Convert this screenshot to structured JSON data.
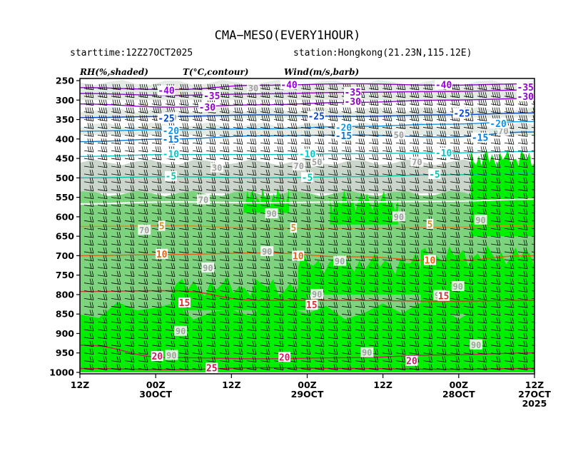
{
  "header": {
    "title": "CMA−MESO(EVERY1HOUR)",
    "starttime": "starttime:12Z27OCT2025",
    "station": "station:Hongkong(21.23N,115.12E)"
  },
  "legend": {
    "rh": "RH(%,shaded)",
    "temp": "T(°C,contour)",
    "wind": "Wind(m/s,barb)"
  },
  "chart_data": {
    "type": "heatmap",
    "title": "CMA−MESO(EVERY1HOUR)",
    "y_axis": {
      "reversed": true,
      "ylim": [
        250,
        1000
      ],
      "ticks": [
        "250",
        "300",
        "350",
        "400",
        "450",
        "500",
        "550",
        "600",
        "650",
        "700",
        "750",
        "800",
        "850",
        "900",
        "950",
        "1000"
      ]
    },
    "x_axis": {
      "direction": "time decreasing to the right",
      "xlim_hours_labels": [
        "12Z 30OCT",
        "12Z 27OCT 2025"
      ],
      "ticks": [
        {
          "line1": "12Z",
          "line2": "",
          "line3": ""
        },
        {
          "line1": "00Z",
          "line2": "30OCT",
          "line3": ""
        },
        {
          "line1": "12Z",
          "line2": "",
          "line3": ""
        },
        {
          "line1": "00Z",
          "line2": "29OCT",
          "line3": ""
        },
        {
          "line1": "12Z",
          "line2": "",
          "line3": ""
        },
        {
          "line1": "00Z",
          "line2": "28OCT",
          "line3": ""
        },
        {
          "line1": "12Z",
          "line2": "27OCT",
          "line3": "2025"
        }
      ]
    },
    "rh_shading": {
      "levels": [
        {
          "min": 30,
          "color": "#e4ebe4"
        },
        {
          "min": 50,
          "color": "#c9d6c9"
        },
        {
          "min": 70,
          "color": "#7ed47e"
        },
        {
          "min": 90,
          "color": "#00ee00"
        }
      ],
      "bands": [
        {
          "p_top": 255,
          "p_bottom": 300,
          "level": 30
        },
        {
          "p_top": 325,
          "p_bottom": 345,
          "level": 30
        },
        {
          "p_top": 365,
          "p_bottom": 390,
          "level": 30
        },
        {
          "p_top": 460,
          "p_bottom": 540,
          "level": 50
        },
        {
          "p_top": 540,
          "p_bottom": 1000,
          "level": 70
        }
      ],
      "saturated_patches": [
        {
          "t0": 0.0,
          "t1": 1.0,
          "p_top": 840,
          "p_bottom": 1000
        },
        {
          "t0": 0.2,
          "t1": 0.5,
          "p_top": 780,
          "p_bottom": 840
        },
        {
          "t0": 0.48,
          "t1": 0.75,
          "p_top": 720,
          "p_bottom": 800
        },
        {
          "t0": 0.75,
          "t1": 1.0,
          "p_top": 700,
          "p_bottom": 850
        },
        {
          "t0": 0.86,
          "t1": 1.0,
          "p_top": 450,
          "p_bottom": 650
        },
        {
          "t0": 0.55,
          "t1": 0.7,
          "p_top": 560,
          "p_bottom": 620
        },
        {
          "t0": 0.36,
          "t1": 0.46,
          "p_top": 550,
          "p_bottom": 590
        }
      ],
      "labels": [
        {
          "t": 0.14,
          "p": 635,
          "text": "70"
        },
        {
          "t": 0.27,
          "p": 557,
          "text": "70"
        },
        {
          "t": 0.28,
          "p": 732,
          "text": "90"
        },
        {
          "t": 0.42,
          "p": 593,
          "text": "90"
        },
        {
          "t": 0.41,
          "p": 690,
          "text": "90"
        },
        {
          "t": 0.3,
          "p": 475,
          "text": "30"
        },
        {
          "t": 0.48,
          "p": 470,
          "text": "70"
        },
        {
          "t": 0.52,
          "p": 460,
          "text": "50"
        },
        {
          "t": 0.57,
          "p": 715,
          "text": "90"
        },
        {
          "t": 0.52,
          "p": 800,
          "text": "90"
        },
        {
          "t": 0.7,
          "p": 601,
          "text": "90"
        },
        {
          "t": 0.79,
          "p": 803,
          "text": "90"
        },
        {
          "t": 0.83,
          "p": 780,
          "text": "90"
        },
        {
          "t": 0.88,
          "p": 609,
          "text": "90"
        },
        {
          "t": 0.22,
          "p": 895,
          "text": "90"
        },
        {
          "t": 0.2,
          "p": 957,
          "text": "90"
        },
        {
          "t": 0.63,
          "p": 950,
          "text": "90"
        },
        {
          "t": 0.87,
          "p": 930,
          "text": "90"
        },
        {
          "t": 0.2,
          "p": 345,
          "text": "30"
        },
        {
          "t": 0.38,
          "p": 270,
          "text": "30"
        },
        {
          "t": 0.7,
          "p": 390,
          "text": "50"
        },
        {
          "t": 0.93,
          "p": 380,
          "text": "70"
        },
        {
          "t": 0.74,
          "p": 460,
          "text": "70"
        }
      ]
    },
    "temperature_contours": [
      {
        "value": -40,
        "color": "#9400d3",
        "points": [
          [
            0.0,
            268
          ],
          [
            0.2,
            273
          ],
          [
            0.4,
            262
          ],
          [
            0.6,
            258
          ],
          [
            0.8,
            262
          ],
          [
            1.0,
            258
          ]
        ]
      },
      {
        "value": -35,
        "color": "#9400d3",
        "points": [
          [
            0.0,
            283
          ],
          [
            0.2,
            288
          ],
          [
            0.4,
            284
          ],
          [
            0.6,
            280
          ],
          [
            0.8,
            278
          ],
          [
            1.0,
            274
          ]
        ]
      },
      {
        "value": -30,
        "color": "#9400d3",
        "points": [
          [
            0.0,
            310
          ],
          [
            0.2,
            318
          ],
          [
            0.4,
            312
          ],
          [
            0.6,
            306
          ],
          [
            0.8,
            300
          ],
          [
            1.0,
            296
          ]
        ]
      },
      {
        "value": -25,
        "color": "#0046c8",
        "points": [
          [
            0.0,
            345
          ],
          [
            0.2,
            342
          ],
          [
            0.4,
            338
          ],
          [
            0.6,
            342
          ],
          [
            0.8,
            338
          ],
          [
            1.0,
            333
          ]
        ]
      },
      {
        "value": -20,
        "color": "#0a96f0",
        "points": [
          [
            0.0,
            380
          ],
          [
            0.2,
            376
          ],
          [
            0.4,
            374
          ],
          [
            0.6,
            368
          ],
          [
            0.8,
            362
          ],
          [
            1.0,
            355
          ]
        ]
      },
      {
        "value": -15,
        "color": "#0078dc",
        "points": [
          [
            0.0,
            407
          ],
          [
            0.2,
            400
          ],
          [
            0.4,
            392
          ],
          [
            0.6,
            390
          ],
          [
            0.8,
            395
          ],
          [
            1.0,
            382
          ]
        ]
      },
      {
        "value": -10,
        "color": "#00c8c8",
        "points": [
          [
            0.0,
            445
          ],
          [
            0.2,
            440
          ],
          [
            0.4,
            440
          ],
          [
            0.6,
            438
          ],
          [
            0.8,
            436
          ],
          [
            1.0,
            432
          ]
        ]
      },
      {
        "value": -5,
        "color": "#00c8aa",
        "points": [
          [
            0.0,
            500
          ],
          [
            0.2,
            497
          ],
          [
            0.4,
            500
          ],
          [
            0.6,
            497
          ],
          [
            0.8,
            492
          ],
          [
            1.0,
            488
          ]
        ]
      },
      {
        "value": 0,
        "color": "#ffffff",
        "points": [
          [
            0.0,
            567
          ],
          [
            0.2,
            562
          ],
          [
            0.4,
            564
          ],
          [
            0.6,
            562
          ],
          [
            0.8,
            560
          ],
          [
            1.0,
            555
          ]
        ]
      },
      {
        "value": 5,
        "color": "#d28c28",
        "points": [
          [
            0.0,
            625
          ],
          [
            0.2,
            623
          ],
          [
            0.4,
            629
          ],
          [
            0.6,
            630
          ],
          [
            0.8,
            627
          ],
          [
            1.0,
            622
          ]
        ]
      },
      {
        "value": 10,
        "color": "#e06414",
        "points": [
          [
            0.0,
            700
          ],
          [
            0.2,
            697
          ],
          [
            0.4,
            693
          ],
          [
            0.6,
            703
          ],
          [
            0.8,
            713
          ],
          [
            1.0,
            700
          ]
        ]
      },
      {
        "value": 15,
        "color": "#d23232",
        "points": [
          [
            0.0,
            792
          ],
          [
            0.2,
            790
          ],
          [
            0.4,
            815
          ],
          [
            0.6,
            815
          ],
          [
            0.8,
            817
          ],
          [
            1.0,
            815
          ]
        ]
      },
      {
        "value": 20,
        "color": "#c81e64",
        "points": [
          [
            0.0,
            930
          ],
          [
            0.2,
            962
          ],
          [
            0.4,
            965
          ],
          [
            0.6,
            962
          ],
          [
            0.8,
            955
          ],
          [
            1.0,
            950
          ]
        ]
      },
      {
        "value": 25,
        "color": "#c8144b",
        "points": [
          [
            0.0,
            990
          ],
          [
            0.2,
            993
          ],
          [
            0.4,
            988
          ],
          [
            0.6,
            990
          ],
          [
            0.8,
            992
          ],
          [
            1.0,
            990
          ]
        ]
      }
    ],
    "contour_labels": [
      {
        "t": 0.19,
        "p": 277,
        "text": "-40",
        "color": "#9400d3"
      },
      {
        "t": 0.46,
        "p": 262,
        "text": "-40",
        "color": "#9400d3"
      },
      {
        "t": 0.8,
        "p": 262,
        "text": "-40",
        "color": "#9400d3"
      },
      {
        "t": 0.98,
        "p": 268,
        "text": "-35",
        "color": "#9400d3"
      },
      {
        "t": 0.29,
        "p": 290,
        "text": "-35",
        "color": "#9400d3"
      },
      {
        "t": 0.6,
        "p": 281,
        "text": "-35",
        "color": "#9400d3"
      },
      {
        "t": 0.28,
        "p": 320,
        "text": "-30",
        "color": "#9400d3"
      },
      {
        "t": 0.6,
        "p": 305,
        "text": "-30",
        "color": "#9400d3"
      },
      {
        "t": 0.98,
        "p": 292,
        "text": "-30",
        "color": "#9400d3"
      },
      {
        "t": 0.19,
        "p": 348,
        "text": "-25",
        "color": "#0046c8"
      },
      {
        "t": 0.52,
        "p": 343,
        "text": "-25",
        "color": "#0046c8"
      },
      {
        "t": 0.84,
        "p": 335,
        "text": "-25",
        "color": "#0046c8"
      },
      {
        "t": 0.2,
        "p": 380,
        "text": "-20",
        "color": "#0a96f0"
      },
      {
        "t": 0.58,
        "p": 372,
        "text": "-20",
        "color": "#0a96f0"
      },
      {
        "t": 0.92,
        "p": 362,
        "text": "-20",
        "color": "#0a96f0"
      },
      {
        "t": 0.2,
        "p": 402,
        "text": "-15",
        "color": "#0078dc"
      },
      {
        "t": 0.58,
        "p": 393,
        "text": "-15",
        "color": "#0078dc"
      },
      {
        "t": 0.88,
        "p": 398,
        "text": "-15",
        "color": "#0078dc"
      },
      {
        "t": 0.2,
        "p": 440,
        "text": "-10",
        "color": "#00c8c8"
      },
      {
        "t": 0.5,
        "p": 440,
        "text": "-10",
        "color": "#00c8c8"
      },
      {
        "t": 0.8,
        "p": 437,
        "text": "-10",
        "color": "#00c8c8"
      },
      {
        "t": 0.2,
        "p": 497,
        "text": "-5",
        "color": "#00c8aa"
      },
      {
        "t": 0.5,
        "p": 500,
        "text": "-5",
        "color": "#00c8aa"
      },
      {
        "t": 0.78,
        "p": 492,
        "text": "-5",
        "color": "#00c8aa"
      },
      {
        "t": 0.18,
        "p": 625,
        "text": "5",
        "color": "#d28c28"
      },
      {
        "t": 0.47,
        "p": 630,
        "text": "5",
        "color": "#d28c28"
      },
      {
        "t": 0.77,
        "p": 620,
        "text": "5",
        "color": "#d28c28"
      },
      {
        "t": 0.18,
        "p": 697,
        "text": "10",
        "color": "#e06414"
      },
      {
        "t": 0.48,
        "p": 702,
        "text": "10",
        "color": "#e06414"
      },
      {
        "t": 0.77,
        "p": 713,
        "text": "10",
        "color": "#e06414"
      },
      {
        "t": 0.23,
        "p": 822,
        "text": "15",
        "color": "#d23232"
      },
      {
        "t": 0.51,
        "p": 828,
        "text": "15",
        "color": "#d23232"
      },
      {
        "t": 0.8,
        "p": 805,
        "text": "15",
        "color": "#d23232"
      },
      {
        "t": 0.17,
        "p": 960,
        "text": "20",
        "color": "#c81e64"
      },
      {
        "t": 0.45,
        "p": 962,
        "text": "20",
        "color": "#c81e64"
      },
      {
        "t": 0.73,
        "p": 972,
        "text": "20",
        "color": "#c81e64"
      },
      {
        "t": 0.29,
        "p": 990,
        "text": "25",
        "color": "#c8144b"
      }
    ],
    "wind_barbs": {
      "pressure_levels": [
        270,
        290,
        310,
        330,
        350,
        370,
        390,
        410,
        430,
        450,
        470,
        490,
        510,
        530,
        550,
        570,
        590,
        610,
        630,
        650,
        670,
        690,
        710,
        730,
        750,
        770,
        790,
        810,
        830,
        850,
        870,
        890,
        910,
        930,
        950,
        970,
        990
      ],
      "time_steps": 34,
      "speed_by_layer": [
        {
          "p_max": 360,
          "knots_equiv": 35
        },
        {
          "p_max": 460,
          "knots_equiv": 25
        },
        {
          "p_max": 700,
          "knots_equiv": 15
        },
        {
          "p_max": 1000,
          "knots_equiv": 20
        }
      ]
    }
  }
}
